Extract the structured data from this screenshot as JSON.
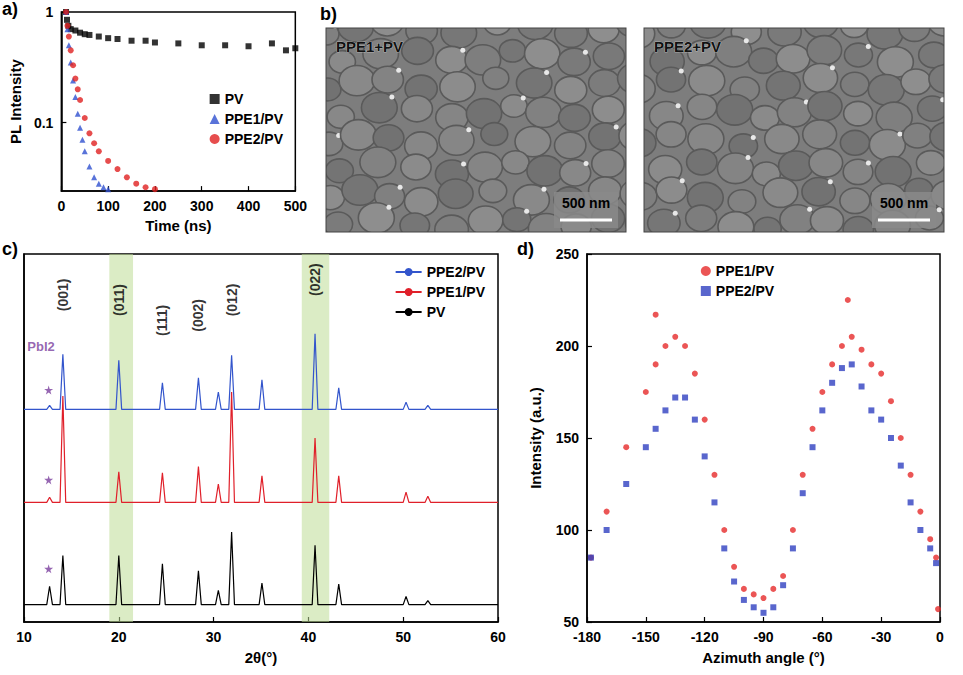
{
  "chart_data": [
    {
      "type": "scatter",
      "title": "a)",
      "xlabel": "Time (ns)",
      "ylabel": "PL Intensity",
      "log": "y",
      "xlim": [
        0,
        500
      ],
      "xticks": [
        0,
        100,
        200,
        300,
        400,
        500
      ],
      "ylim": [
        0.024,
        1
      ],
      "yticks": [
        0.1,
        1
      ],
      "legend": "right",
      "series": [
        {
          "name": "PV",
          "color": "#000000",
          "marker": "square",
          "values": [
            [
              10,
              1.0
            ],
            [
              12,
              0.85
            ],
            [
              15,
              0.75
            ],
            [
              20,
              0.7
            ],
            [
              30,
              0.68
            ],
            [
              40,
              0.65
            ],
            [
              50,
              0.63
            ],
            [
              60,
              0.62
            ],
            [
              80,
              0.6
            ],
            [
              100,
              0.58
            ],
            [
              120,
              0.57
            ],
            [
              150,
              0.55
            ],
            [
              180,
              0.55
            ],
            [
              200,
              0.53
            ],
            [
              250,
              0.52
            ],
            [
              300,
              0.5
            ],
            [
              350,
              0.5
            ],
            [
              400,
              0.49
            ],
            [
              450,
              0.52
            ],
            [
              480,
              0.45
            ],
            [
              500,
              0.47
            ]
          ]
        },
        {
          "name": "PPE1/PV",
          "color": "#3050d0",
          "marker": "triangle",
          "values": [
            [
              10,
              1.0
            ],
            [
              13,
              0.7
            ],
            [
              16,
              0.5
            ],
            [
              20,
              0.35
            ],
            [
              25,
              0.24
            ],
            [
              30,
              0.17
            ],
            [
              35,
              0.12
            ],
            [
              40,
              0.09
            ],
            [
              45,
              0.07
            ],
            [
              50,
              0.055
            ],
            [
              60,
              0.04
            ],
            [
              70,
              0.032
            ],
            [
              80,
              0.028
            ],
            [
              90,
              0.026
            ],
            [
              100,
              0.025
            ]
          ]
        },
        {
          "name": "PPE2/PV",
          "color": "#e02020",
          "marker": "circle",
          "values": [
            [
              10,
              1.0
            ],
            [
              13,
              0.75
            ],
            [
              16,
              0.6
            ],
            [
              20,
              0.45
            ],
            [
              25,
              0.33
            ],
            [
              30,
              0.25
            ],
            [
              35,
              0.2
            ],
            [
              40,
              0.16
            ],
            [
              50,
              0.11
            ],
            [
              60,
              0.08
            ],
            [
              70,
              0.065
            ],
            [
              80,
              0.055
            ],
            [
              100,
              0.045
            ],
            [
              120,
              0.038
            ],
            [
              140,
              0.032
            ],
            [
              160,
              0.028
            ],
            [
              180,
              0.026
            ],
            [
              200,
              0.025
            ]
          ]
        }
      ]
    },
    {
      "type": "line",
      "title": "c)",
      "xlabel": "2θ(°)",
      "tick_labels": "x",
      "xlim": [
        10,
        60
      ],
      "xticks": [
        10,
        20,
        30,
        40,
        50,
        60
      ],
      "ylim": [
        0,
        360
      ],
      "legend": "upper right",
      "highlights": [
        [
          19,
          21.5
        ],
        [
          39.3,
          42.2
        ]
      ],
      "star_marks": {
        "x": [
          12.6,
          12.6,
          12.6
        ],
        "y": [
          52,
          139,
          227
        ]
      },
      "annotations": [
        {
          "text": "PbI2",
          "x": 11.8,
          "y": 270
        },
        {
          "text": "(001)",
          "x": 14.1,
          "y": 320
        },
        {
          "text": "(011)",
          "x": 20.0,
          "y": 315
        },
        {
          "text": "(111)",
          "x": 24.6,
          "y": 295
        },
        {
          "text": "(002)",
          "x": 28.4,
          "y": 300
        },
        {
          "text": "(012)",
          "x": 31.9,
          "y": 315
        },
        {
          "text": "(022)",
          "x": 40.7,
          "y": 335
        }
      ],
      "series": [
        {
          "name": "PPE2/PV",
          "color": "#3355cc",
          "values": [
            [
              10,
              208
            ],
            [
              12.4,
              208
            ],
            [
              12.7,
              212
            ],
            [
              13,
              208
            ],
            [
              13.8,
              208
            ],
            [
              14.1,
              262
            ],
            [
              14.4,
              208
            ],
            [
              19.7,
              208
            ],
            [
              20,
              256
            ],
            [
              20.3,
              208
            ],
            [
              24.3,
              208
            ],
            [
              24.6,
              234
            ],
            [
              24.9,
              208
            ],
            [
              28.1,
              208
            ],
            [
              28.4,
              239
            ],
            [
              28.7,
              208
            ],
            [
              30.2,
              208
            ],
            [
              30.5,
              225
            ],
            [
              30.8,
              208
            ],
            [
              31.6,
              208
            ],
            [
              31.9,
              261
            ],
            [
              32.2,
              208
            ],
            [
              34.8,
              208
            ],
            [
              35.1,
              237
            ],
            [
              35.4,
              208
            ],
            [
              40.4,
              208
            ],
            [
              40.7,
              282
            ],
            [
              41,
              208
            ],
            [
              42.9,
              208
            ],
            [
              43.2,
              229
            ],
            [
              43.5,
              208
            ],
            [
              50,
              208
            ],
            [
              50.3,
              215
            ],
            [
              50.6,
              208
            ],
            [
              52.3,
              208
            ],
            [
              52.6,
              212
            ],
            [
              52.9,
              208
            ],
            [
              60,
              208
            ]
          ]
        },
        {
          "name": "PPE1/PV",
          "color": "#e0202a",
          "values": [
            [
              10,
              117
            ],
            [
              12.4,
              117
            ],
            [
              12.7,
              122
            ],
            [
              13,
              117
            ],
            [
              13.8,
              117
            ],
            [
              14.1,
              221
            ],
            [
              14.4,
              117
            ],
            [
              19.7,
              117
            ],
            [
              20,
              147
            ],
            [
              20.3,
              117
            ],
            [
              24.3,
              117
            ],
            [
              24.6,
              146
            ],
            [
              24.9,
              117
            ],
            [
              28.1,
              117
            ],
            [
              28.4,
              152
            ],
            [
              28.7,
              117
            ],
            [
              30.2,
              117
            ],
            [
              30.5,
              135
            ],
            [
              30.8,
              117
            ],
            [
              31.6,
              117
            ],
            [
              31.9,
              225
            ],
            [
              32.2,
              117
            ],
            [
              34.8,
              117
            ],
            [
              35.1,
              143
            ],
            [
              35.4,
              117
            ],
            [
              40.4,
              117
            ],
            [
              40.7,
              180
            ],
            [
              41,
              117
            ],
            [
              42.9,
              117
            ],
            [
              43.2,
              143
            ],
            [
              43.5,
              117
            ],
            [
              50,
              117
            ],
            [
              50.3,
              127
            ],
            [
              50.6,
              117
            ],
            [
              52.3,
              117
            ],
            [
              52.6,
              123
            ],
            [
              52.9,
              117
            ],
            [
              60,
              117
            ]
          ]
        },
        {
          "name": "PV",
          "color": "#000000",
          "values": [
            [
              10,
              17
            ],
            [
              12.4,
              17
            ],
            [
              12.7,
              35
            ],
            [
              13,
              17
            ],
            [
              13.8,
              17
            ],
            [
              14.1,
              65
            ],
            [
              14.4,
              17
            ],
            [
              19.7,
              17
            ],
            [
              20,
              65
            ],
            [
              20.3,
              17
            ],
            [
              24.3,
              17
            ],
            [
              24.6,
              57
            ],
            [
              24.9,
              17
            ],
            [
              28.1,
              17
            ],
            [
              28.4,
              50
            ],
            [
              28.7,
              17
            ],
            [
              30.2,
              17
            ],
            [
              30.5,
              31
            ],
            [
              30.8,
              17
            ],
            [
              31.6,
              17
            ],
            [
              31.9,
              88
            ],
            [
              32.2,
              17
            ],
            [
              34.8,
              17
            ],
            [
              35.1,
              38
            ],
            [
              35.4,
              17
            ],
            [
              40.4,
              17
            ],
            [
              40.7,
              75
            ],
            [
              41,
              17
            ],
            [
              42.9,
              17
            ],
            [
              43.2,
              37
            ],
            [
              43.5,
              17
            ],
            [
              50,
              17
            ],
            [
              50.3,
              25
            ],
            [
              50.6,
              17
            ],
            [
              52.3,
              17
            ],
            [
              52.6,
              21
            ],
            [
              52.9,
              17
            ],
            [
              60,
              17
            ]
          ]
        }
      ]
    },
    {
      "type": "scatter",
      "title": "d)",
      "xlabel": "Azimuth angle (°)",
      "ylabel": "Intensity (a.u.)",
      "xlim": [
        -180,
        0
      ],
      "xticks": [
        -180,
        -150,
        -120,
        -90,
        -60,
        -30,
        0
      ],
      "ylim": [
        50,
        250
      ],
      "yticks": [
        50,
        100,
        150,
        200,
        250
      ],
      "legend": "upper center",
      "series": [
        {
          "name": "PPE1/PV",
          "color": "#e62a2a",
          "marker": "circle",
          "values": [
            [
              -178,
              85
            ],
            [
              -170,
              110
            ],
            [
              -160,
              145
            ],
            [
              -150,
              175
            ],
            [
              -145,
              217
            ],
            [
              -145,
              190
            ],
            [
              -140,
              200
            ],
            [
              -135,
              205
            ],
            [
              -130,
              200
            ],
            [
              -125,
              185
            ],
            [
              -120,
              160
            ],
            [
              -115,
              130
            ],
            [
              -110,
              100
            ],
            [
              -105,
              80
            ],
            [
              -100,
              68
            ],
            [
              -95,
              65
            ],
            [
              -90,
              63
            ],
            [
              -85,
              68
            ],
            [
              -80,
              75
            ],
            [
              -75,
              100
            ],
            [
              -70,
              130
            ],
            [
              -65,
              155
            ],
            [
              -60,
              175
            ],
            [
              -55,
              190
            ],
            [
              -50,
              200
            ],
            [
              -47,
              225
            ],
            [
              -45,
              205
            ],
            [
              -40,
              198
            ],
            [
              -35,
              190
            ],
            [
              -30,
              185
            ],
            [
              -25,
              170
            ],
            [
              -20,
              150
            ],
            [
              -15,
              130
            ],
            [
              -10,
              110
            ],
            [
              -5,
              95
            ],
            [
              -2,
              85
            ],
            [
              -1,
              57
            ]
          ]
        },
        {
          "name": "PPE2/PV",
          "color": "#3040c0",
          "marker": "square",
          "values": [
            [
              -178,
              85
            ],
            [
              -170,
              100
            ],
            [
              -160,
              125
            ],
            [
              -150,
              145
            ],
            [
              -145,
              155
            ],
            [
              -140,
              165
            ],
            [
              -135,
              172
            ],
            [
              -130,
              172
            ],
            [
              -125,
              160
            ],
            [
              -120,
              140
            ],
            [
              -115,
              115
            ],
            [
              -110,
              90
            ],
            [
              -105,
              72
            ],
            [
              -100,
              62
            ],
            [
              -95,
              58
            ],
            [
              -90,
              55
            ],
            [
              -85,
              58
            ],
            [
              -80,
              70
            ],
            [
              -75,
              90
            ],
            [
              -70,
              120
            ],
            [
              -65,
              145
            ],
            [
              -60,
              165
            ],
            [
              -55,
              180
            ],
            [
              -50,
              188
            ],
            [
              -45,
              190
            ],
            [
              -40,
              178
            ],
            [
              -35,
              165
            ],
            [
              -30,
              160
            ],
            [
              -25,
              150
            ],
            [
              -20,
              135
            ],
            [
              -15,
              115
            ],
            [
              -10,
              100
            ],
            [
              -5,
              90
            ],
            [
              -2,
              82
            ]
          ]
        }
      ]
    }
  ],
  "sem_panel": {
    "title": "b)",
    "images": [
      {
        "label": "PPE1+PV",
        "scale_bar": "500 nm"
      },
      {
        "label": "PPE2+PV",
        "scale_bar": "500 nm"
      }
    ]
  }
}
